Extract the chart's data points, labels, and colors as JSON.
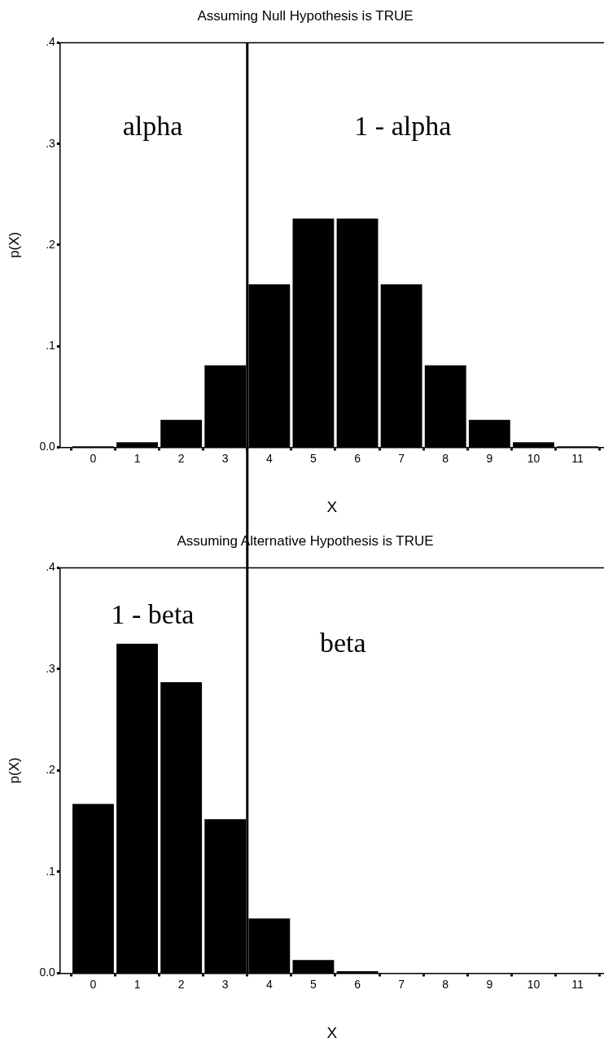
{
  "chart_data": [
    {
      "type": "bar",
      "title": "Assuming Null Hypothesis is TRUE",
      "xlabel": "X",
      "ylabel": "p(X)",
      "color": "#000000",
      "x": [
        0,
        1,
        2,
        3,
        4,
        5,
        6,
        7,
        8,
        9,
        10,
        11
      ],
      "values": [
        0.001,
        0.005,
        0.027,
        0.081,
        0.161,
        0.226,
        0.226,
        0.161,
        0.081,
        0.027,
        0.005,
        0.001
      ],
      "xlim": [
        -0.75,
        11.6
      ],
      "xticks": [
        0,
        1,
        2,
        3,
        4,
        5,
        6,
        7,
        8,
        9,
        10,
        11
      ],
      "ylim": [
        0,
        0.4
      ],
      "yticks": [
        {
          "value": 0,
          "label": "0.0"
        },
        {
          "value": 0.1,
          "label": ".1"
        },
        {
          "value": 0.2,
          "label": ".2"
        },
        {
          "value": 0.3,
          "label": ".3"
        },
        {
          "value": 0.4,
          "label": ".4"
        }
      ],
      "ref_lines": [
        {
          "axis": "x",
          "value": 3.5
        }
      ],
      "annotations": [
        "alpha",
        "1 - alpha"
      ],
      "grid": false,
      "legend": false
    },
    {
      "type": "bar",
      "title": "Assuming Alternative Hypothesis is TRUE",
      "xlabel": "X",
      "ylabel": "p(X)",
      "color": "#000000",
      "x": [
        0,
        1,
        2,
        3,
        4,
        5,
        6,
        7,
        8,
        9,
        10,
        11
      ],
      "values": [
        0.167,
        0.325,
        0.287,
        0.152,
        0.054,
        0.013,
        0.002,
        0,
        0,
        0,
        0,
        0
      ],
      "xlim": [
        -0.75,
        11.6
      ],
      "xticks": [
        0,
        1,
        2,
        3,
        4,
        5,
        6,
        7,
        8,
        9,
        10,
        11
      ],
      "ylim": [
        0,
        0.4
      ],
      "yticks": [
        {
          "value": 0,
          "label": "0.0"
        },
        {
          "value": 0.1,
          "label": ".1"
        },
        {
          "value": 0.2,
          "label": ".2"
        },
        {
          "value": 0.3,
          "label": ".3"
        },
        {
          "value": 0.4,
          "label": ".4"
        }
      ],
      "ref_lines": [
        {
          "axis": "x",
          "value": 3.5
        }
      ],
      "annotations": [
        "1 - beta",
        "beta"
      ],
      "grid": false,
      "legend": false
    }
  ]
}
